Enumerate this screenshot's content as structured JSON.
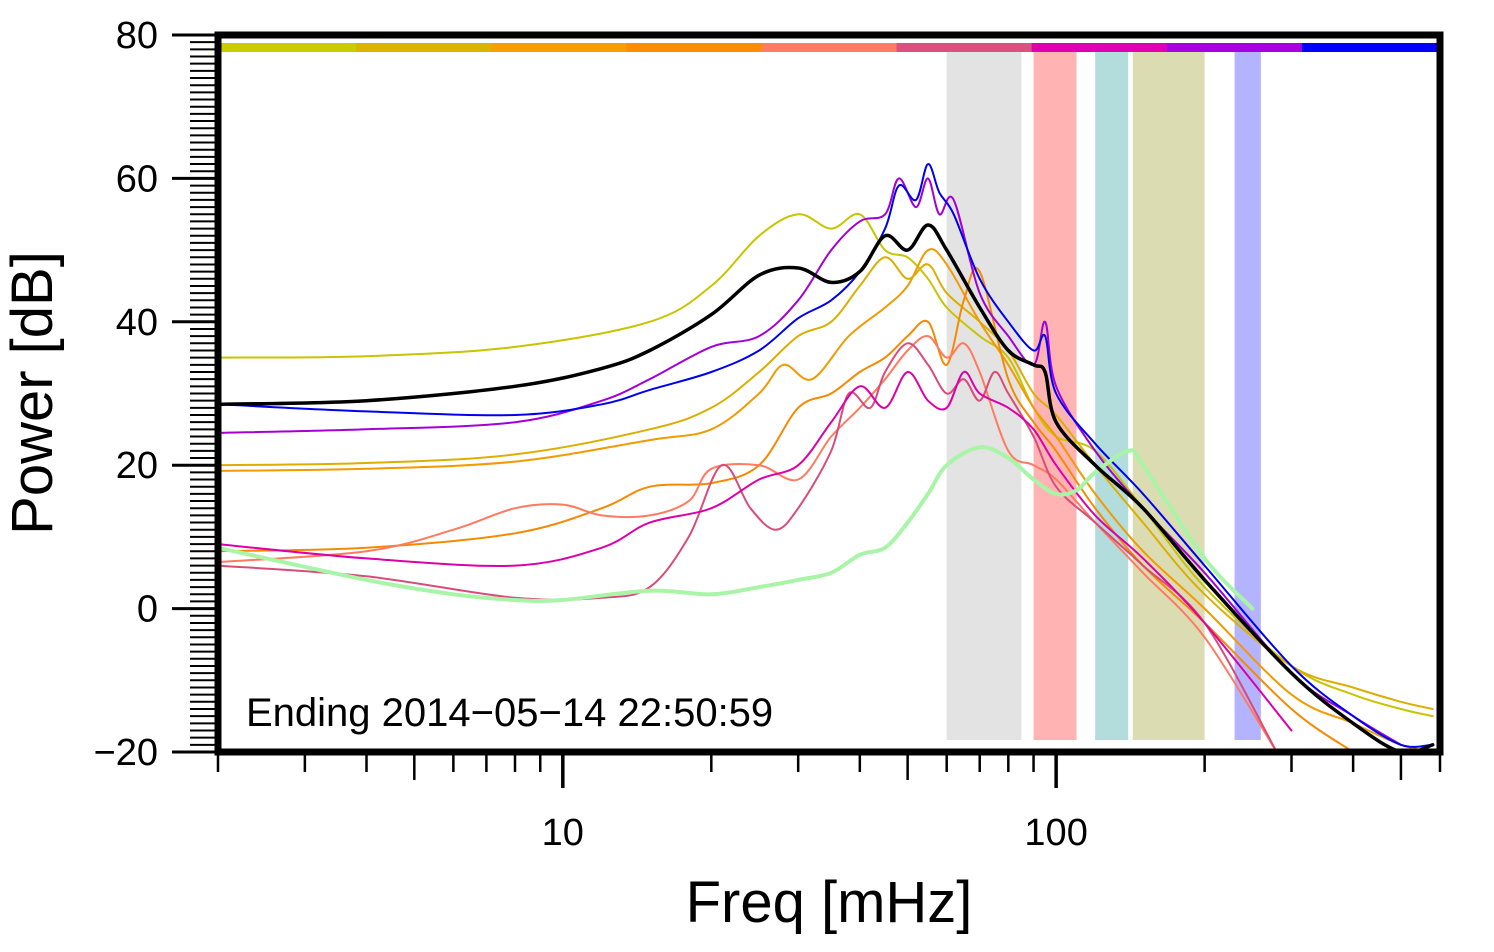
{
  "chart_data": {
    "type": "line",
    "xscale": "log",
    "xlabel": "Freq [mHz]",
    "ylabel": "Power [dB]",
    "xlim": [
      2,
      600
    ],
    "ylim": [
      -20,
      80
    ],
    "x_tick_labels": [
      {
        "value": 10,
        "label": "10"
      },
      {
        "value": 100,
        "label": "100"
      }
    ],
    "y_tick_labels": [
      {
        "value": -20,
        "label": "−20"
      },
      {
        "value": 0,
        "label": "0"
      },
      {
        "value": 20,
        "label": "20"
      },
      {
        "value": 40,
        "label": "40"
      },
      {
        "value": 60,
        "label": "60"
      },
      {
        "value": 80,
        "label": "80"
      }
    ],
    "annotation": "Ending 2014−05−14 22:50:59",
    "color_strip": [
      "#c8cc00",
      "#dcb400",
      "#f5a000",
      "#ff8c00",
      "#ff7c64",
      "#dc5080",
      "#e000b4",
      "#a800e0",
      "#0000ff"
    ],
    "bands": [
      {
        "from": 60,
        "to": 85,
        "color": "#e3e3e3"
      },
      {
        "from": 90,
        "to": 110,
        "color": "#ffb3b3"
      },
      {
        "from": 120,
        "to": 140,
        "color": "#b3dcdc"
      },
      {
        "from": 143,
        "to": 200,
        "color": "#dcdcb3"
      },
      {
        "from": 230,
        "to": 260,
        "color": "#b3b3ff"
      }
    ],
    "series": [
      {
        "name": "yellow-green",
        "color": "#c8c400",
        "width": 2,
        "x": [
          2,
          4,
          8,
          15,
          20,
          25,
          30,
          35,
          40,
          45,
          50,
          55,
          60,
          70,
          80,
          90,
          100,
          120,
          150,
          200,
          300,
          400,
          500,
          580
        ],
        "y": [
          35,
          35.2,
          36.5,
          40,
          45,
          52,
          55,
          53,
          55,
          50,
          49,
          46,
          42,
          38,
          35,
          28,
          24,
          22,
          14,
          3,
          -8,
          -12,
          -14,
          -15
        ]
      },
      {
        "name": "gold",
        "color": "#dcae00",
        "width": 2,
        "x": [
          2,
          4,
          8,
          15,
          20,
          25,
          30,
          35,
          40,
          45,
          50,
          55,
          60,
          70,
          80,
          90,
          100,
          120,
          150,
          200,
          300,
          400,
          500,
          580
        ],
        "y": [
          20,
          20.3,
          21.5,
          25,
          28,
          33,
          38,
          40,
          45,
          49,
          46,
          48,
          44,
          40,
          36,
          30,
          27,
          20,
          12,
          2,
          -8,
          -11,
          -13,
          -14
        ]
      },
      {
        "name": "orange",
        "color": "#f29a00",
        "width": 2,
        "x": [
          2,
          4,
          8,
          15,
          20,
          25,
          28,
          32,
          38,
          45,
          50,
          55,
          60,
          70,
          80,
          90,
          100,
          120,
          150,
          200,
          300,
          400,
          500,
          580
        ],
        "y": [
          19.2,
          19.5,
          20.5,
          23.5,
          25,
          30,
          34,
          32,
          38,
          42,
          45,
          50,
          48,
          40,
          34,
          28,
          24,
          16,
          8,
          0,
          -12,
          -16,
          -19,
          -20
        ]
      },
      {
        "name": "dark-orange",
        "color": "#f58a00",
        "width": 2,
        "x": [
          2,
          4,
          8,
          12,
          15,
          20,
          25,
          30,
          35,
          40,
          45,
          50,
          55,
          60,
          65,
          70,
          80,
          90,
          100,
          120,
          150,
          200,
          300,
          400
        ],
        "y": [
          8,
          8.5,
          10.5,
          14,
          17,
          17.5,
          20,
          28,
          30,
          33,
          35,
          38,
          40,
          34,
          43,
          47,
          32,
          26,
          22,
          14,
          6,
          -2,
          -14,
          -20
        ]
      },
      {
        "name": "salmon",
        "color": "#ff7a60",
        "width": 2,
        "x": [
          2,
          4,
          6,
          8,
          10,
          12,
          15,
          18,
          20,
          25,
          30,
          35,
          40,
          45,
          50,
          55,
          60,
          65,
          70,
          80,
          90,
          100,
          120,
          150,
          200,
          280
        ],
        "y": [
          6.5,
          8,
          11,
          14,
          14.5,
          13,
          13,
          15,
          19.5,
          20,
          18,
          24,
          28,
          32,
          36,
          38,
          35,
          37,
          33,
          22,
          20,
          18,
          12,
          5,
          -4,
          -20
        ]
      },
      {
        "name": "rose",
        "color": "#d94c78",
        "width": 2,
        "x": [
          2,
          4,
          8,
          12,
          15,
          18,
          21,
          24,
          27,
          30,
          35,
          38,
          42,
          45,
          50,
          55,
          60,
          65,
          70,
          75,
          80,
          90,
          100,
          120,
          150,
          200,
          280
        ],
        "y": [
          6,
          4.5,
          1.5,
          1.5,
          3,
          10,
          20,
          14,
          11,
          14,
          22,
          30,
          28,
          33,
          37,
          34,
          30,
          32,
          29,
          33,
          30,
          24,
          17,
          12,
          6,
          -2,
          -20
        ]
      },
      {
        "name": "magenta",
        "color": "#dc00aa",
        "width": 2,
        "x": [
          2,
          4,
          8,
          12,
          15,
          20,
          25,
          30,
          35,
          40,
          45,
          50,
          55,
          60,
          65,
          70,
          80,
          90,
          100,
          120,
          150,
          200,
          300
        ],
        "y": [
          9,
          7,
          6,
          8.5,
          12,
          14,
          18,
          20,
          26,
          31,
          28,
          33,
          29,
          28,
          33,
          30,
          28,
          25,
          20,
          13,
          7,
          -2,
          -17
        ]
      },
      {
        "name": "purple",
        "color": "#a400d6",
        "width": 2,
        "x": [
          2,
          4,
          8,
          12,
          15,
          20,
          25,
          30,
          35,
          40,
          45,
          48,
          52,
          55,
          58,
          62,
          70,
          80,
          90,
          95,
          100,
          120,
          150,
          200,
          300,
          400,
          500
        ],
        "y": [
          24.5,
          25,
          26,
          29,
          32,
          36.5,
          38,
          43,
          50,
          54,
          55,
          60,
          56,
          60,
          55,
          57,
          44,
          38,
          34,
          40,
          31,
          22,
          14,
          5,
          -9,
          -15,
          -19
        ]
      },
      {
        "name": "blue",
        "color": "#0000ee",
        "width": 2,
        "x": [
          2,
          4,
          8,
          12,
          15,
          20,
          25,
          30,
          35,
          40,
          45,
          48,
          52,
          55,
          58,
          62,
          70,
          80,
          90,
          95,
          100,
          120,
          150,
          200,
          300,
          400,
          500,
          580
        ],
        "y": [
          28.5,
          27.5,
          27,
          28.5,
          30.5,
          33,
          36,
          40.5,
          43,
          47,
          53,
          59,
          57,
          62,
          58,
          55,
          46,
          40,
          36,
          38,
          30,
          23,
          16,
          6,
          -8,
          -15,
          -19,
          -19
        ]
      },
      {
        "name": "black-mean",
        "color": "#000000",
        "width": 3.5,
        "x": [
          2,
          4,
          8,
          12,
          15,
          20,
          25,
          30,
          35,
          40,
          45,
          50,
          55,
          60,
          70,
          80,
          90,
          95,
          100,
          120,
          150,
          200,
          300,
          400,
          500,
          580
        ],
        "y": [
          28.5,
          29,
          31,
          33.5,
          36,
          41,
          46.5,
          47.5,
          45.5,
          47,
          52,
          50,
          53.5,
          50,
          42,
          36,
          34,
          33,
          26,
          20,
          14,
          4,
          -9,
          -16,
          -20,
          -19
        ]
      },
      {
        "name": "light-green",
        "color": "#a8f5a8",
        "width": 4,
        "x": [
          2,
          4,
          6,
          8,
          10,
          15,
          20,
          25,
          30,
          35,
          40,
          45,
          50,
          55,
          60,
          70,
          80,
          90,
          100,
          110,
          120,
          140,
          150,
          200,
          250
        ],
        "y": [
          8.5,
          4,
          2,
          1.2,
          1.2,
          2.5,
          2,
          3,
          4,
          5,
          7.5,
          8.5,
          12,
          16,
          20,
          22.5,
          21,
          18,
          16,
          16.5,
          19,
          22,
          20,
          7,
          0
        ]
      }
    ]
  }
}
